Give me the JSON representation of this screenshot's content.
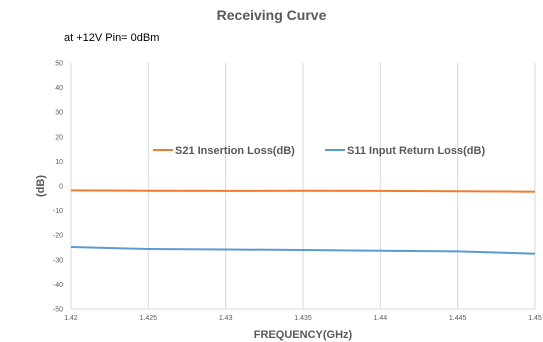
{
  "chart_data": {
    "type": "line",
    "title": "Receiving Curve",
    "subtitle": "at +12V Pin= 0dBm",
    "xlabel": "FREQUENCY(GHz)",
    "ylabel": "(dB)",
    "xlim": [
      1.42,
      1.45
    ],
    "ylim": [
      -50,
      50
    ],
    "x_ticks": [
      "1.42",
      "1.425",
      "1.43",
      "1.435",
      "1.44",
      "1.445",
      "1.45"
    ],
    "y_ticks": [
      "50",
      "40",
      "30",
      "20",
      "10",
      "0",
      "-10",
      "-20",
      "-30",
      "-40",
      "-50"
    ],
    "grid": "vertical",
    "legend_position": "middle",
    "series": [
      {
        "name": "S21 Insertion Loss(dB)",
        "color": "#ED7D31",
        "x": [
          1.42,
          1.425,
          1.43,
          1.435,
          1.44,
          1.445,
          1.45
        ],
        "y": [
          -1.8,
          -1.9,
          -2.0,
          -1.9,
          -2.0,
          -2.1,
          -2.3
        ]
      },
      {
        "name": "S11 Input Return Loss(dB)",
        "color": "#5B9BD5",
        "x": [
          1.42,
          1.425,
          1.43,
          1.435,
          1.44,
          1.445,
          1.45
        ],
        "y": [
          -24.8,
          -25.6,
          -25.8,
          -26.0,
          -26.3,
          -26.6,
          -27.5
        ]
      }
    ]
  }
}
